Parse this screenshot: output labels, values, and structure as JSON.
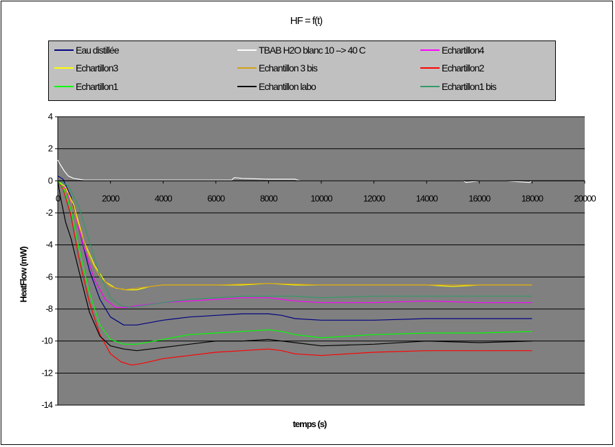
{
  "chart_data": {
    "type": "line",
    "title": "HF = f(t)",
    "xlabel": "temps (s)",
    "ylabel": "HeatFlow (mW)",
    "xlim": [
      0,
      20000
    ],
    "ylim": [
      -14,
      4
    ],
    "x_ticks": [
      "0",
      "2000",
      "4000",
      "6000",
      "8000",
      "10000",
      "12000",
      "14000",
      "16000",
      "18000",
      "20000"
    ],
    "y_ticks": [
      "4",
      "2",
      "0",
      "-2",
      "-4",
      "-6",
      "-8",
      "-10",
      "-12",
      "-14"
    ],
    "grid": "horizontal",
    "plot_background": "#808080",
    "legend_position": "top",
    "series": [
      {
        "name": "Eau distillée",
        "color": "#000080",
        "x": [
          0,
          200,
          500,
          800,
          1200,
          1600,
          2000,
          2500,
          3000,
          4000,
          5000,
          6000,
          7000,
          8000,
          8500,
          9000,
          10000,
          12000,
          14000,
          16000,
          18000
        ],
        "y": [
          0.3,
          0.1,
          -1.0,
          -3.0,
          -5.6,
          -7.4,
          -8.5,
          -9.0,
          -9.0,
          -8.7,
          -8.5,
          -8.4,
          -8.3,
          -8.3,
          -8.4,
          -8.6,
          -8.7,
          -8.7,
          -8.6,
          -8.6,
          -8.6
        ]
      },
      {
        "name": "TBAB H2O blanc 10 --> 40 C",
        "color": "#ffffff",
        "x": [
          0,
          100,
          250,
          400,
          600,
          800,
          1000,
          2000,
          4000,
          6000,
          6600,
          6700,
          7000,
          8000,
          9000,
          9200,
          10000,
          12000,
          14000,
          15400,
          15500,
          16000,
          17000,
          17900,
          18000
        ],
        "y": [
          1.3,
          1.0,
          0.6,
          0.3,
          0.15,
          0.1,
          0.05,
          0.05,
          0.05,
          0.05,
          0.05,
          0.2,
          0.15,
          0.1,
          0.1,
          0.0,
          0.0,
          0.0,
          0.0,
          0.0,
          -0.1,
          0.0,
          0.0,
          -0.1,
          0.0
        ]
      },
      {
        "name": "Echartillon4",
        "color": "#ff00ff",
        "x": [
          0,
          300,
          600,
          1000,
          1400,
          1800,
          2200,
          2600,
          3000,
          4000,
          5000,
          6000,
          7000,
          8000,
          8500,
          9000,
          10000,
          12000,
          14000,
          16000,
          18000
        ],
        "y": [
          0.0,
          -0.5,
          -1.8,
          -4.2,
          -6.2,
          -7.4,
          -7.9,
          -7.9,
          -7.8,
          -7.6,
          -7.5,
          -7.4,
          -7.3,
          -7.3,
          -7.4,
          -7.5,
          -7.6,
          -7.6,
          -7.5,
          -7.6,
          -7.6
        ]
      },
      {
        "name": "Echartillon3",
        "color": "#ffff00",
        "x": [
          0,
          300,
          600,
          1000,
          1400,
          1800,
          2200,
          2600,
          3000,
          3500,
          4000,
          5000,
          6000,
          7000,
          8000,
          9000,
          10000,
          12000,
          14000,
          15000,
          16000,
          18000
        ],
        "y": [
          0.0,
          -0.4,
          -1.5,
          -3.8,
          -5.3,
          -6.3,
          -6.7,
          -6.8,
          -6.8,
          -6.6,
          -6.5,
          -6.5,
          -6.5,
          -6.5,
          -6.4,
          -6.5,
          -6.5,
          -6.5,
          -6.5,
          -6.6,
          -6.5,
          -6.5
        ]
      },
      {
        "name": "Echantillon 3 bis",
        "color": "#d4a017",
        "x": [
          0,
          400,
          800,
          1200,
          1600,
          2000,
          2500,
          3000,
          4000,
          6000,
          8000,
          10000,
          14000,
          18000
        ],
        "y": [
          0.0,
          -0.8,
          -2.8,
          -4.8,
          -6.0,
          -6.6,
          -6.8,
          -6.7,
          -6.5,
          -6.5,
          -6.4,
          -6.5,
          -6.5,
          -6.5
        ]
      },
      {
        "name": "Echartillon2",
        "color": "#ff0000",
        "x": [
          0,
          200,
          500,
          800,
          1200,
          1600,
          2000,
          2400,
          2800,
          3200,
          4000,
          5000,
          6000,
          7000,
          8000,
          8500,
          9000,
          10000,
          12000,
          14000,
          16000,
          18000
        ],
        "y": [
          0.0,
          -0.5,
          -2.2,
          -4.8,
          -7.6,
          -9.6,
          -10.8,
          -11.3,
          -11.5,
          -11.4,
          -11.1,
          -10.9,
          -10.7,
          -10.6,
          -10.5,
          -10.6,
          -10.8,
          -10.9,
          -10.7,
          -10.6,
          -10.6,
          -10.6
        ]
      },
      {
        "name": "Echartillon1",
        "color": "#00ff00",
        "x": [
          0,
          200,
          500,
          800,
          1200,
          1600,
          2000,
          2500,
          3000,
          4000,
          5000,
          6000,
          7000,
          8000,
          8500,
          9000,
          10000,
          12000,
          14000,
          16000,
          18000
        ],
        "y": [
          0.0,
          -0.4,
          -1.8,
          -4.2,
          -7.0,
          -9.0,
          -9.9,
          -10.2,
          -10.2,
          -9.9,
          -9.6,
          -9.5,
          -9.4,
          -9.3,
          -9.4,
          -9.6,
          -9.8,
          -9.6,
          -9.5,
          -9.5,
          -9.4
        ]
      },
      {
        "name": "Echantillon labo",
        "color": "#000000",
        "x": [
          0,
          100,
          300,
          500,
          800,
          1200,
          1600,
          2000,
          2500,
          3000,
          4000,
          5000,
          6000,
          7000,
          8000,
          9000,
          10000,
          12000,
          14000,
          16000,
          18000
        ],
        "y": [
          0.0,
          -1.0,
          -2.6,
          -3.6,
          -5.6,
          -8.2,
          -9.7,
          -10.3,
          -10.5,
          -10.6,
          -10.4,
          -10.2,
          -10.0,
          -10.0,
          -9.9,
          -10.1,
          -10.3,
          -10.2,
          -10.0,
          -10.1,
          -10.0
        ]
      },
      {
        "name": "Echartillon1 bis",
        "color": "#339966",
        "x": [
          0,
          400,
          800,
          1200,
          1600,
          2000,
          2400,
          2800,
          3200,
          4000,
          5000,
          6000,
          7000,
          8000,
          9000,
          10000,
          12000,
          14000,
          16000,
          18000
        ],
        "y": [
          0.0,
          -0.3,
          -1.6,
          -3.8,
          -5.9,
          -7.3,
          -7.8,
          -7.9,
          -7.8,
          -7.6,
          -7.4,
          -7.3,
          -7.2,
          -7.2,
          -7.2,
          -7.3,
          -7.2,
          -7.2,
          -7.2,
          -7.2
        ]
      }
    ]
  }
}
